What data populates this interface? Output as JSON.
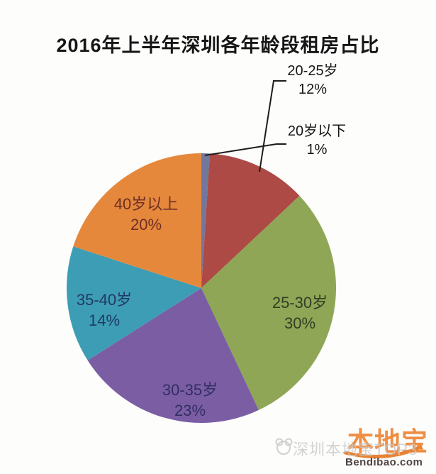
{
  "title": "2016年上半年深圳各年龄段租房占比",
  "chart_data": {
    "type": "pie",
    "title": "2016年上半年深圳各年龄段租房占比",
    "start_angle_deg": 0,
    "direction": "clockwise",
    "legend": "none",
    "slices": [
      {
        "label": "20岁以下",
        "value_pct": 1,
        "value_label": "1%",
        "color": "#72779e",
        "label_color": "#161616",
        "label_placement": "outside-callout"
      },
      {
        "label": "20-25岁",
        "value_pct": 12,
        "value_label": "12%",
        "color": "#ad4a45",
        "label_color": "#161616",
        "label_placement": "outside-callout"
      },
      {
        "label": "25-30岁",
        "value_pct": 30,
        "value_label": "30%",
        "color": "#8ea656",
        "label_color": "#333d22",
        "label_placement": "inside"
      },
      {
        "label": "30-35岁",
        "value_pct": 23,
        "value_label": "23%",
        "color": "#7b5da4",
        "label_color": "#322e63",
        "label_placement": "inside"
      },
      {
        "label": "35-40岁",
        "value_pct": 14,
        "value_label": "14%",
        "color": "#3d9db4",
        "label_color": "#203a64",
        "label_placement": "inside"
      },
      {
        "label": "40岁以上",
        "value_pct": 20,
        "value_label": "20%",
        "color": "#e5883c",
        "label_color": "#6f2f23",
        "label_placement": "inside"
      }
    ]
  },
  "watermark": {
    "logo_text": "本地宝",
    "overlay_text": "深圳本地宝TOP3",
    "site_text": "Bendibao.com",
    "logo_color": "#ef8f45",
    "overlay_color": "#c9c9c9",
    "site_color": "#4e4440",
    "swoosh_color": "#e88334",
    "mascot_color": "#d0d0d0"
  }
}
